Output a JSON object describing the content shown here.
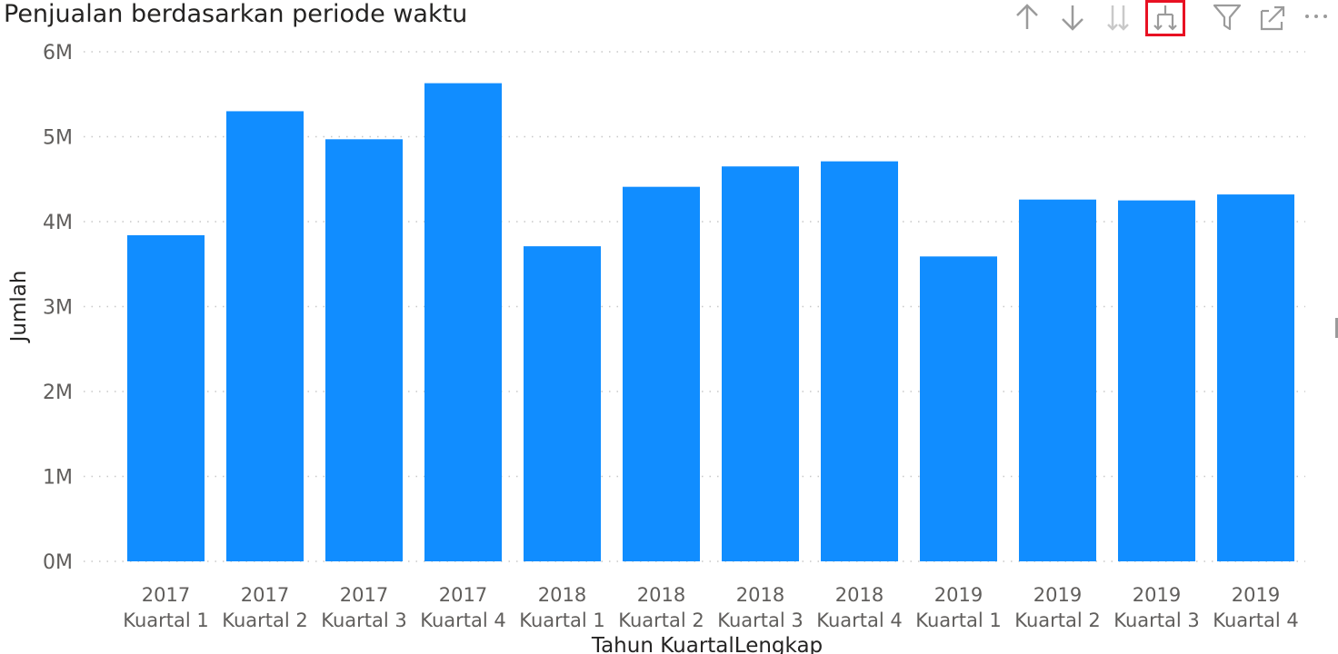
{
  "header": {
    "title": "Penjualan berdasarkan periode waktu",
    "toolbar": [
      {
        "name": "drill-up-icon",
        "icon": "arrow-up"
      },
      {
        "name": "drill-down-icon",
        "icon": "arrow-down"
      },
      {
        "name": "go-to-next-level-icon",
        "icon": "double-arrow-down"
      },
      {
        "name": "expand-next-level-icon",
        "icon": "fork-arrow-down",
        "selected": true
      },
      {
        "name": "filter-icon",
        "icon": "funnel"
      },
      {
        "name": "focus-mode-icon",
        "icon": "expand"
      },
      {
        "name": "more-options-icon",
        "icon": "ellipsis"
      }
    ]
  },
  "colors": {
    "bar": "#118DFF",
    "grid": "#c8c8c8",
    "axis_text": "#605e5c",
    "title_text": "#252423",
    "icon": "#9b9b9b",
    "icon_disabled": "#c9c9c9",
    "selected_outline": "#e81123"
  },
  "chart_data": {
    "type": "bar",
    "xlabel": "Tahun KuartalLengkap",
    "ylabel": "Jumlah",
    "categories": [
      [
        "2017",
        "Kuartal 1"
      ],
      [
        "2017",
        "Kuartal 2"
      ],
      [
        "2017",
        "Kuartal 3"
      ],
      [
        "2017",
        "Kuartal 4"
      ],
      [
        "2018",
        "Kuartal 1"
      ],
      [
        "2018",
        "Kuartal 2"
      ],
      [
        "2018",
        "Kuartal 3"
      ],
      [
        "2018",
        "Kuartal 4"
      ],
      [
        "2019",
        "Kuartal 1"
      ],
      [
        "2019",
        "Kuartal 2"
      ],
      [
        "2019",
        "Kuartal 3"
      ],
      [
        "2019",
        "Kuartal 4"
      ]
    ],
    "values": [
      3840000,
      5300000,
      4970000,
      5630000,
      3710000,
      4410000,
      4650000,
      4710000,
      3590000,
      4260000,
      4250000,
      4320000
    ],
    "ylim": [
      0,
      6000000
    ],
    "yticks": [
      0,
      1000000,
      2000000,
      3000000,
      4000000,
      5000000,
      6000000
    ],
    "ytick_labels": [
      "0M",
      "1M",
      "2M",
      "3M",
      "4M",
      "5M",
      "6M"
    ],
    "grid": "horizontal-dotted",
    "legend": "none"
  }
}
